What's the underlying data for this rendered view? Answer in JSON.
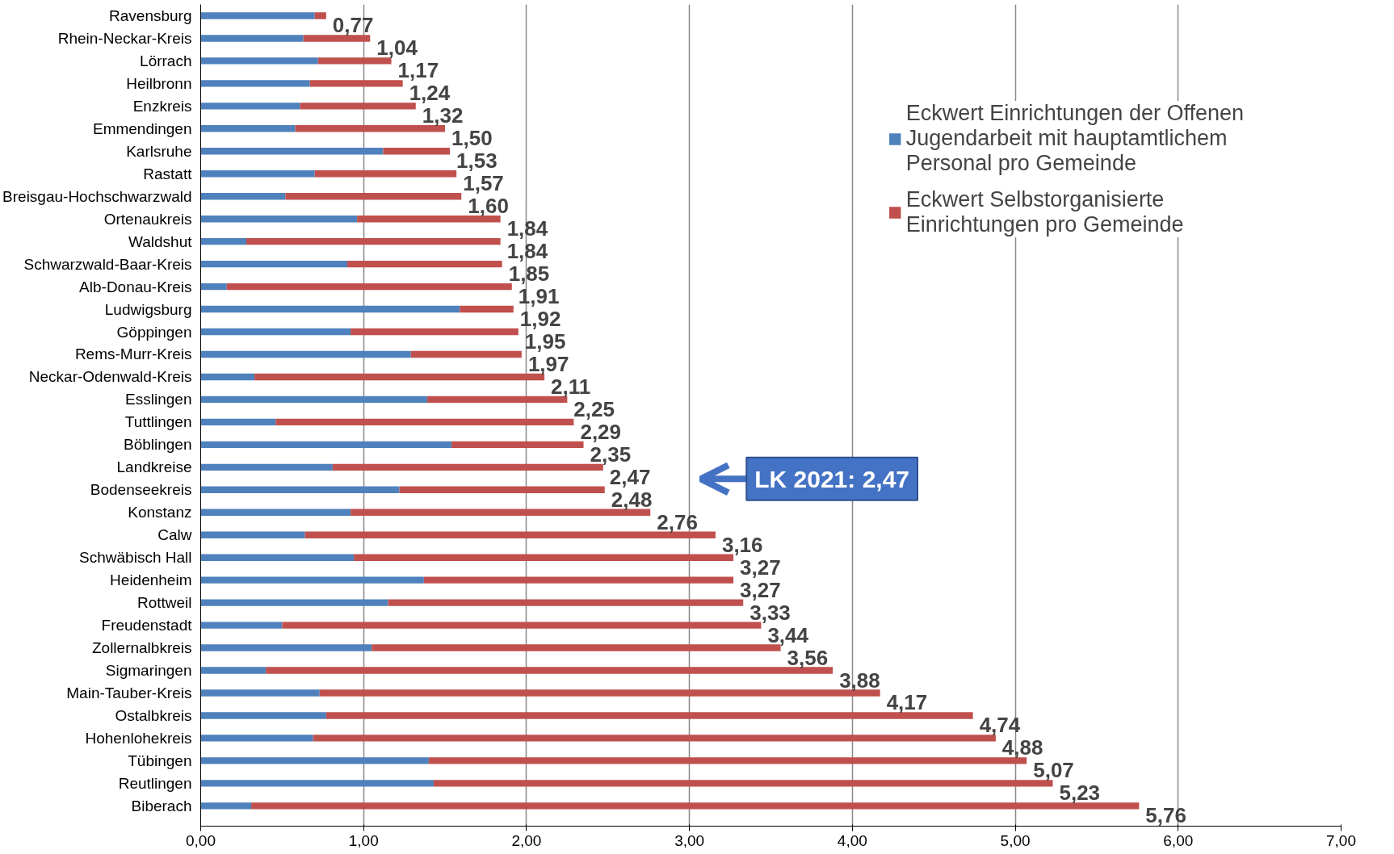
{
  "chart_data": {
    "type": "bar",
    "orientation": "horizontal",
    "stacked": true,
    "categories": [
      "Ravensburg",
      "Rhein-Neckar-Kreis",
      "Lörrach",
      "Heilbronn",
      "Enzkreis",
      "Emmendingen",
      "Karlsruhe",
      "Rastatt",
      "Breisgau-Hochschwarzwald",
      "Ortenaukreis",
      "Waldshut",
      "Schwarzwald-Baar-Kreis",
      "Alb-Donau-Kreis",
      "Ludwigsburg",
      "Göppingen",
      "Rems-Murr-Kreis",
      "Neckar-Odenwald-Kreis",
      "Esslingen",
      "Tuttlingen",
      "Böblingen",
      "Landkreise",
      "Bodenseekreis",
      "Konstanz",
      "Calw",
      "Schwäbisch Hall",
      "Heidenheim",
      "Rottweil",
      "Freudenstadt",
      "Zollernalbkreis",
      "Sigmaringen",
      "Main-Tauber-Kreis",
      "Ostalbkreis",
      "Hohenlohekreis",
      "Tübingen",
      "Reutlingen",
      "Biberach"
    ],
    "series": [
      {
        "name": "Eckwert Einrichtungen der Offenen Jugendarbeit mit hauptamtlichem Personal pro Gemeinde",
        "color": "#4f81bd",
        "values": [
          0.7,
          0.63,
          0.72,
          0.67,
          0.61,
          0.58,
          1.12,
          0.7,
          0.52,
          0.96,
          0.28,
          0.9,
          0.16,
          1.59,
          0.92,
          1.29,
          0.33,
          1.39,
          0.46,
          1.54,
          0.81,
          1.22,
          0.92,
          0.64,
          0.94,
          1.37,
          1.15,
          0.5,
          1.05,
          0.4,
          0.73,
          0.77,
          0.69,
          1.4,
          1.43,
          0.31
        ]
      },
      {
        "name": "Eckwert Selbstorganisierte Einrichtungen pro Gemeinde",
        "color": "#c0504d",
        "values": [
          0.07,
          0.41,
          0.45,
          0.57,
          0.71,
          0.92,
          0.41,
          0.87,
          1.08,
          0.88,
          1.56,
          0.95,
          1.75,
          0.33,
          1.03,
          0.68,
          1.78,
          0.86,
          1.83,
          0.81,
          1.66,
          1.26,
          1.84,
          2.52,
          2.33,
          1.9,
          2.18,
          2.94,
          2.51,
          3.48,
          3.44,
          3.97,
          4.19,
          3.67,
          3.8,
          5.45
        ]
      }
    ],
    "totals": [
      "0,77",
      "1,04",
      "1,17",
      "1,24",
      "1,32",
      "1,50",
      "1,53",
      "1,57",
      "1,60",
      "1,84",
      "1,84",
      "1,85",
      "1,91",
      "1,92",
      "1,95",
      "1,97",
      "2,11",
      "2,25",
      "2,29",
      "2,35",
      "2,47",
      "2,48",
      "2,76",
      "3,16",
      "3,27",
      "3,27",
      "3,33",
      "3,44",
      "3,56",
      "3,88",
      "4,17",
      "4,74",
      "4,88",
      "5,07",
      "5,23",
      "5,76"
    ],
    "xlim": [
      0,
      7
    ],
    "xticks": [
      {
        "value": 0,
        "label": "0,00"
      },
      {
        "value": 1,
        "label": "1,00"
      },
      {
        "value": 2,
        "label": "2,00"
      },
      {
        "value": 3,
        "label": "3,00"
      },
      {
        "value": 4,
        "label": "4,00"
      },
      {
        "value": 5,
        "label": "5,00"
      },
      {
        "value": 6,
        "label": "6,00"
      },
      {
        "value": 7,
        "label": "7,00"
      }
    ],
    "grid": "x",
    "legend": "top right",
    "annotations": [
      "LK 2021: 2,47"
    ]
  }
}
